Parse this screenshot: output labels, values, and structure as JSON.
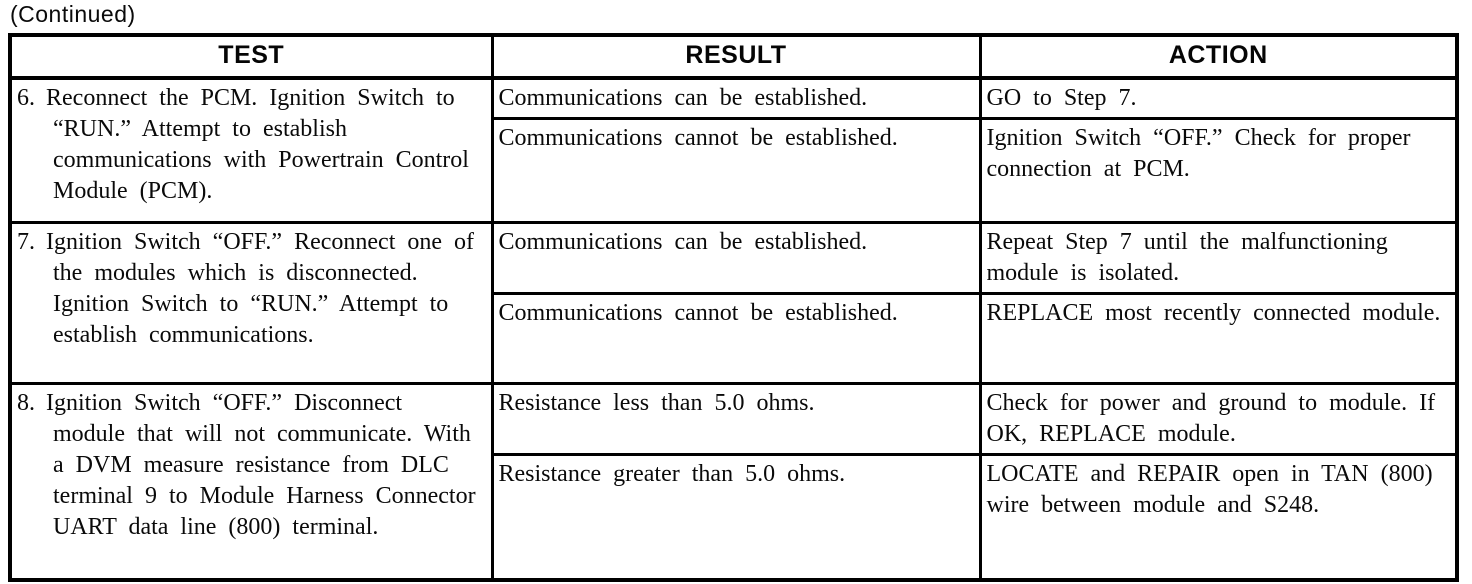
{
  "page": {
    "continued_label": "(Continued)"
  },
  "table": {
    "headers": [
      "TEST",
      "RESULT",
      "ACTION"
    ],
    "rows": [
      {
        "test": {
          "number": "6.",
          "text": "Reconnect the PCM. Ignition Switch to “RUN.” Attempt to establish communications with Powertrain Control Module (PCM)."
        },
        "outcomes": [
          {
            "result": "Communications can be established.",
            "action": "GO to Step 7."
          },
          {
            "result": "Communications cannot be established.",
            "action": "Ignition Switch “OFF.” Check for proper connection at PCM."
          }
        ]
      },
      {
        "test": {
          "number": "7.",
          "text": "Ignition Switch “OFF.” Reconnect one of the modules which is disconnected. Ignition Switch to “RUN.” Attempt to establish communications."
        },
        "outcomes": [
          {
            "result": "Communications can be established.",
            "action": "Repeat Step 7 until the malfunctioning module is isolated."
          },
          {
            "result": "Communications cannot be established.",
            "action": "REPLACE most recently connected module."
          }
        ]
      },
      {
        "test": {
          "number": "8.",
          "text": "Ignition Switch “OFF.” Disconnect module that will not communicate. With a DVM measure resistance from DLC terminal 9 to Module Harness Connector UART data line (800) terminal."
        },
        "outcomes": [
          {
            "result": "Resistance less than 5.0 ohms.",
            "action": "Check for power and ground to module. If OK, REPLACE module."
          },
          {
            "result": "Resistance greater than 5.0 ohms.",
            "action": "LOCATE and REPAIR open in TAN (800) wire between module and S248."
          }
        ]
      }
    ]
  }
}
